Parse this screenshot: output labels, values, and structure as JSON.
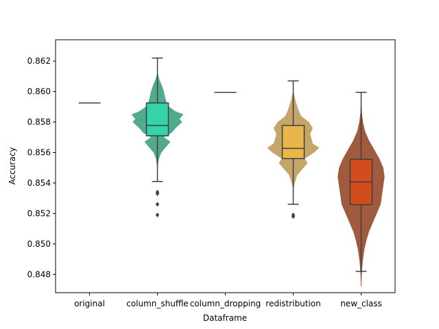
{
  "chart_data": {
    "type": "violin+box",
    "title": "",
    "xlabel": "Dataframe",
    "ylabel": "Accuracy",
    "ylim": [
      0.8468,
      0.8634
    ],
    "yticks": [
      0.848,
      0.85,
      0.852,
      0.854,
      0.856,
      0.858,
      0.86,
      0.862
    ],
    "ytick_labels": [
      "0.848",
      "0.850",
      "0.852",
      "0.854",
      "0.856",
      "0.858",
      "0.860",
      "0.862"
    ],
    "categories": [
      "original",
      "column_shuffle",
      "column_dropping",
      "redistribution",
      "new_class"
    ],
    "grid": false,
    "legend": "none",
    "colors": {
      "column_shuffle_box": "#34d3a9",
      "column_shuffle_violin": "#52aa8c",
      "redistribution_box": "#e8b64a",
      "redistribution_violin": "#c4a66a",
      "new_class_box": "#d24d1e",
      "new_class_violin": "#a05b3e",
      "line": "#3f3f3f"
    },
    "series": [
      {
        "category": "original",
        "constant": 0.85925
      },
      {
        "category": "column_shuffle",
        "whisker_low": 0.8541,
        "q1": 0.8571,
        "median": 0.85777,
        "q3": 0.85925,
        "whisker_high": 0.8622,
        "outliers": [
          0.8534,
          0.8533,
          0.8526,
          0.8519
        ],
        "violin": [
          [
            0.8546,
            0.005
          ],
          [
            0.8552,
            0.02
          ],
          [
            0.8556,
            0.06
          ],
          [
            0.856,
            0.15
          ],
          [
            0.8563,
            0.3
          ],
          [
            0.8567,
            0.5
          ],
          [
            0.857,
            0.25
          ],
          [
            0.8573,
            0.55
          ],
          [
            0.8576,
            0.7
          ],
          [
            0.858,
            0.95
          ],
          [
            0.8582,
            0.85
          ],
          [
            0.8585,
            1.0
          ],
          [
            0.8587,
            0.7
          ],
          [
            0.859,
            0.45
          ],
          [
            0.8593,
            0.35
          ],
          [
            0.8596,
            0.3
          ],
          [
            0.86,
            0.25
          ],
          [
            0.8604,
            0.17
          ],
          [
            0.8608,
            0.07
          ],
          [
            0.8612,
            0.01
          ]
        ]
      },
      {
        "category": "column_dropping",
        "constant": 0.85995
      },
      {
        "category": "redistribution",
        "whisker_low": 0.8526,
        "q1": 0.8556,
        "median": 0.85627,
        "q3": 0.85777,
        "whisker_high": 0.8607,
        "outliers": [
          0.8519,
          0.8518
        ],
        "violin": [
          [
            0.8536,
            0.005
          ],
          [
            0.854,
            0.06
          ],
          [
            0.8545,
            0.15
          ],
          [
            0.8549,
            0.35
          ],
          [
            0.8553,
            0.55
          ],
          [
            0.8556,
            0.45
          ],
          [
            0.856,
            0.8
          ],
          [
            0.8563,
            1.0
          ],
          [
            0.8566,
            0.75
          ],
          [
            0.8569,
            0.7
          ],
          [
            0.8572,
            0.65
          ],
          [
            0.8576,
            0.75
          ],
          [
            0.858,
            0.6
          ],
          [
            0.8584,
            0.3
          ],
          [
            0.8588,
            0.2
          ],
          [
            0.8592,
            0.12
          ],
          [
            0.8596,
            0.06
          ],
          [
            0.86,
            0.01
          ]
        ]
      },
      {
        "category": "new_class",
        "whisker_low": 0.8482,
        "q1": 0.85258,
        "median": 0.85407,
        "q3": 0.85555,
        "whisker_high": 0.85995,
        "outliers": [],
        "violin": [
          [
            0.8472,
            0.01
          ],
          [
            0.8478,
            0.02
          ],
          [
            0.8484,
            0.04
          ],
          [
            0.849,
            0.07
          ],
          [
            0.8496,
            0.12
          ],
          [
            0.8502,
            0.2
          ],
          [
            0.8508,
            0.3
          ],
          [
            0.8514,
            0.45
          ],
          [
            0.852,
            0.6
          ],
          [
            0.8526,
            0.75
          ],
          [
            0.8532,
            0.8
          ],
          [
            0.8538,
            0.85
          ],
          [
            0.8544,
            0.9
          ],
          [
            0.855,
            0.85
          ],
          [
            0.8556,
            0.7
          ],
          [
            0.8562,
            0.5
          ],
          [
            0.8568,
            0.3
          ],
          [
            0.8574,
            0.15
          ],
          [
            0.858,
            0.07
          ],
          [
            0.8586,
            0.03
          ],
          [
            0.8592,
            0.01
          ],
          [
            0.86,
            0.005
          ]
        ]
      }
    ]
  }
}
